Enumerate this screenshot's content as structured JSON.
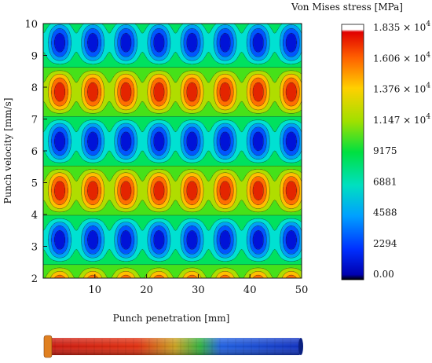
{
  "chart_data": {
    "type": "heatmap",
    "title": "",
    "xlabel": "Punch penetration [mm]",
    "ylabel": "Punch velocity [mm/s]",
    "xlim": [
      0,
      50
    ],
    "ylim": [
      2,
      10
    ],
    "x_ticks": [
      "10",
      "20",
      "30",
      "40",
      "50"
    ],
    "y_ticks": [
      "2",
      "3",
      "4",
      "5",
      "6",
      "7",
      "8",
      "9",
      "10"
    ],
    "legend": {
      "title": "Von Mises stress [MPa]",
      "placement": "right",
      "labels": [
        "1.835 × 10",
        "1.606 × 10",
        "1.376 × 10",
        "1.147 × 10",
        "9175",
        "6881",
        "4588",
        "2294",
        "0.00"
      ],
      "exponent": "4",
      "min": 0,
      "max": 18350
    },
    "pattern": {
      "x_period_mm": 6.4,
      "x_phase_mm": 3.2,
      "y_period": 3.1,
      "high_y": [
        4.75,
        7.85
      ],
      "low_y": [
        3.2,
        6.3,
        9.4
      ]
    },
    "grid": false
  },
  "colors": {
    "low": "#0000cc",
    "mid": "#00e000",
    "high": "#e00000",
    "top": "#ffffff"
  }
}
